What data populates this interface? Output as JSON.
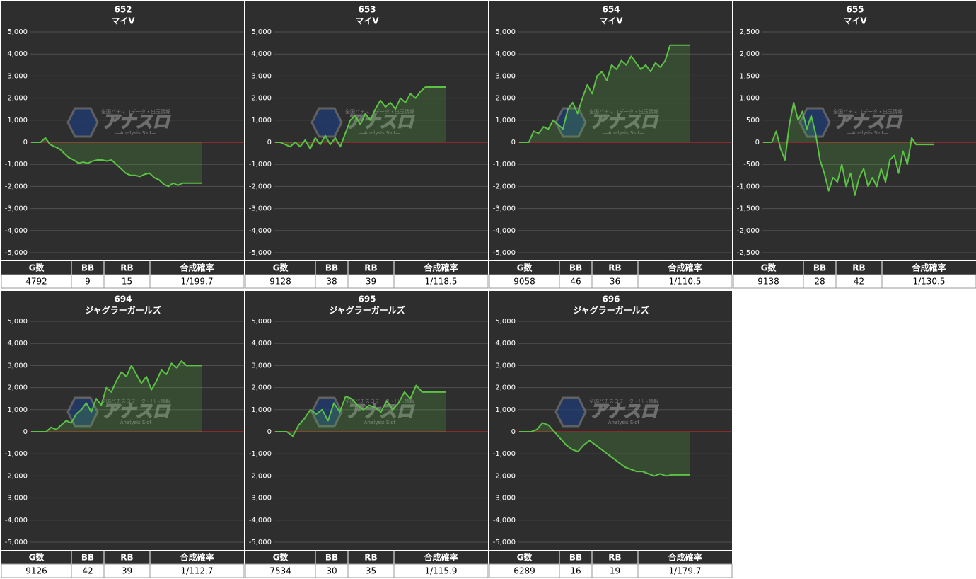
{
  "chart_data": [
    {
      "type": "line",
      "title": "652",
      "subtitle": "マイV",
      "color": "#5cc245",
      "grid": true,
      "values": [
        0,
        0,
        0,
        200,
        -100,
        -200,
        -300,
        -500,
        -700,
        -800,
        -950,
        -900,
        -950,
        -850,
        -800,
        -800,
        -850,
        -800,
        -1000,
        -1200,
        -1400,
        -1500,
        -1500,
        -1550,
        -1450,
        -1400,
        -1600,
        -1700,
        -1900,
        -2000,
        -1850,
        -1950,
        -1850,
        -1850,
        -1850,
        -1850,
        -1850
      ],
      "ylim": [
        -5000,
        5000
      ],
      "yticks": [
        {
          "value": -5000,
          "label": "-5,000"
        },
        {
          "value": -4000,
          "label": "-4,000"
        },
        {
          "value": -3000,
          "label": "-3,000"
        },
        {
          "value": -2000,
          "label": "-2,000"
        },
        {
          "value": -1000,
          "label": "-1,000"
        },
        0,
        {
          "value": 1000,
          "label": "1,000"
        },
        {
          "value": 2000,
          "label": "2,000"
        },
        {
          "value": 3000,
          "label": "3,000"
        },
        {
          "value": 4000,
          "label": "4,000"
        },
        {
          "value": 5000,
          "label": "5,000"
        }
      ],
      "table": {
        "columns": [
          "G数",
          "BB",
          "RB",
          "合成確率"
        ],
        "row": [
          4792,
          9,
          15,
          "1/199.7"
        ]
      }
    },
    {
      "type": "line",
      "title": "653",
      "subtitle": "マイV",
      "color": "#5cc245",
      "grid": true,
      "values": [
        0,
        0,
        -100,
        -200,
        0,
        -200,
        100,
        -300,
        200,
        -100,
        300,
        -100,
        200,
        -200,
        400,
        1000,
        1200,
        800,
        1300,
        1000,
        1500,
        1900,
        1600,
        1800,
        1500,
        2000,
        1800,
        2200,
        2000,
        2300,
        2500,
        2500,
        2500,
        2500,
        2500
      ],
      "ylim": [
        -5000,
        5000
      ],
      "yticks": [
        {
          "value": -5000,
          "label": "-5,000"
        },
        {
          "value": -4000,
          "label": "-4,000"
        },
        {
          "value": -3000,
          "label": "-3,000"
        },
        {
          "value": -2000,
          "label": "-2,000"
        },
        {
          "value": -1000,
          "label": "-1,000"
        },
        0,
        {
          "value": 1000,
          "label": "1,000"
        },
        {
          "value": 2000,
          "label": "2,000"
        },
        {
          "value": 3000,
          "label": "3,000"
        },
        {
          "value": 4000,
          "label": "4,000"
        },
        {
          "value": 5000,
          "label": "5,000"
        }
      ],
      "table": {
        "columns": [
          "G数",
          "BB",
          "RB",
          "合成確率"
        ],
        "row": [
          9128,
          38,
          39,
          "1/118.5"
        ]
      }
    },
    {
      "type": "line",
      "title": "654",
      "subtitle": "マイV",
      "color": "#5cc245",
      "grid": true,
      "values": [
        0,
        0,
        0,
        500,
        400,
        700,
        600,
        1000,
        800,
        600,
        1500,
        1800,
        1300,
        2000,
        2600,
        2200,
        3000,
        3200,
        2800,
        3500,
        3300,
        3700,
        3500,
        3900,
        3600,
        3300,
        3500,
        3200,
        3600,
        3400,
        3700,
        4400,
        4400,
        4400,
        4400,
        4400
      ],
      "ylim": [
        -5000,
        5000
      ],
      "yticks": [
        {
          "value": -5000,
          "label": "-5,000"
        },
        {
          "value": -4000,
          "label": "-4,000"
        },
        {
          "value": -3000,
          "label": "-3,000"
        },
        {
          "value": -2000,
          "label": "-2,000"
        },
        {
          "value": -1000,
          "label": "-1,000"
        },
        0,
        {
          "value": 1000,
          "label": "1,000"
        },
        {
          "value": 2000,
          "label": "2,000"
        },
        {
          "value": 3000,
          "label": "3,000"
        },
        {
          "value": 4000,
          "label": "4,000"
        },
        {
          "value": 5000,
          "label": "5,000"
        }
      ],
      "table": {
        "columns": [
          "G数",
          "BB",
          "RB",
          "合成確率"
        ],
        "row": [
          9058,
          46,
          36,
          "1/110.5"
        ]
      }
    },
    {
      "type": "line",
      "title": "655",
      "subtitle": "マイV",
      "color": "#5cc245",
      "grid": true,
      "values": [
        0,
        0,
        0,
        250,
        -150,
        -400,
        400,
        900,
        500,
        700,
        300,
        600,
        200,
        -400,
        -700,
        -1100,
        -800,
        -900,
        -500,
        -1000,
        -700,
        -1200,
        -800,
        -600,
        -1000,
        -800,
        -1000,
        -600,
        -900,
        -400,
        -300,
        -700,
        -200,
        -500,
        100,
        -50,
        -50,
        -50,
        -50,
        -50
      ],
      "ylim": [
        -2500,
        2500
      ],
      "yticks": [
        {
          "value": -2500,
          "label": "-2,500"
        },
        {
          "value": -2000,
          "label": "-2,000"
        },
        {
          "value": -1500,
          "label": "-1,500"
        },
        {
          "value": -1000,
          "label": "-1,000"
        },
        -500,
        0,
        500,
        {
          "value": 1000,
          "label": "1,000"
        },
        {
          "value": 1500,
          "label": "1,500"
        },
        {
          "value": 2000,
          "label": "2,000"
        },
        {
          "value": 2500,
          "label": "2,500"
        }
      ],
      "table": {
        "columns": [
          "G数",
          "BB",
          "RB",
          "合成確率"
        ],
        "row": [
          9138,
          28,
          42,
          "1/130.5"
        ]
      }
    },
    {
      "type": "line",
      "title": "694",
      "subtitle": "ジャグラーガールズ",
      "color": "#5cc245",
      "grid": true,
      "values": [
        0,
        0,
        0,
        0,
        200,
        100,
        300,
        500,
        400,
        800,
        1000,
        1300,
        900,
        1500,
        1200,
        2000,
        1800,
        2300,
        2700,
        2500,
        3000,
        2600,
        2200,
        2500,
        1900,
        2300,
        2800,
        2600,
        3100,
        2900,
        3200,
        3000,
        3000,
        3000,
        3000
      ],
      "ylim": [
        -5000,
        5000
      ],
      "yticks": [
        {
          "value": -5000,
          "label": "-5,000"
        },
        {
          "value": -4000,
          "label": "-4,000"
        },
        {
          "value": -3000,
          "label": "-3,000"
        },
        {
          "value": -2000,
          "label": "-2,000"
        },
        {
          "value": -1000,
          "label": "-1,000"
        },
        0,
        {
          "value": 1000,
          "label": "1,000"
        },
        {
          "value": 2000,
          "label": "2,000"
        },
        {
          "value": 3000,
          "label": "3,000"
        },
        {
          "value": 4000,
          "label": "4,000"
        },
        {
          "value": 5000,
          "label": "5,000"
        }
      ],
      "table": {
        "columns": [
          "G数",
          "BB",
          "RB",
          "合成確率"
        ],
        "row": [
          9126,
          42,
          39,
          "1/112.7"
        ]
      }
    },
    {
      "type": "line",
      "title": "695",
      "subtitle": "ジャグラーガールズ",
      "color": "#5cc245",
      "grid": true,
      "values": [
        0,
        0,
        0,
        -200,
        300,
        600,
        1000,
        800,
        1000,
        500,
        1300,
        900,
        1600,
        1500,
        1200,
        1000,
        1200,
        1100,
        900,
        1400,
        1000,
        1300,
        1800,
        1500,
        2100,
        1800,
        1800,
        1800,
        1800,
        1800
      ],
      "ylim": [
        -5000,
        5000
      ],
      "yticks": [
        {
          "value": -5000,
          "label": "-5,000"
        },
        {
          "value": -4000,
          "label": "-4,000"
        },
        {
          "value": -3000,
          "label": "-3,000"
        },
        {
          "value": -2000,
          "label": "-2,000"
        },
        {
          "value": -1000,
          "label": "-1,000"
        },
        0,
        {
          "value": 1000,
          "label": "1,000"
        },
        {
          "value": 2000,
          "label": "2,000"
        },
        {
          "value": 3000,
          "label": "3,000"
        },
        {
          "value": 4000,
          "label": "4,000"
        },
        {
          "value": 5000,
          "label": "5,000"
        }
      ],
      "table": {
        "columns": [
          "G数",
          "BB",
          "RB",
          "合成確率"
        ],
        "row": [
          7534,
          30,
          35,
          "1/115.9"
        ]
      }
    },
    {
      "type": "line",
      "title": "696",
      "subtitle": "ジャグラーガールズ",
      "color": "#5cc245",
      "grid": true,
      "values": [
        0,
        0,
        0,
        100,
        400,
        300,
        0,
        -300,
        -600,
        -800,
        -900,
        -600,
        -400,
        -600,
        -800,
        -1000,
        -1200,
        -1400,
        -1600,
        -1700,
        -1800,
        -1800,
        -1900,
        -2000,
        -1900,
        -2000,
        -1950,
        -1950,
        -1950,
        -1950
      ],
      "ylim": [
        -5000,
        5000
      ],
      "yticks": [
        {
          "value": -5000,
          "label": "-5,000"
        },
        {
          "value": -4000,
          "label": "-4,000"
        },
        {
          "value": -3000,
          "label": "-3,000"
        },
        {
          "value": -2000,
          "label": "-2,000"
        },
        {
          "value": -1000,
          "label": "-1,000"
        },
        0,
        {
          "value": 1000,
          "label": "1,000"
        },
        {
          "value": 2000,
          "label": "2,000"
        },
        {
          "value": 3000,
          "label": "3,000"
        },
        {
          "value": 4000,
          "label": "4,000"
        },
        {
          "value": 5000,
          "label": "5,000"
        }
      ],
      "table": {
        "columns": [
          "G数",
          "BB",
          "RB",
          "合成確率"
        ],
        "row": [
          6289,
          16,
          19,
          "1/179.7"
        ]
      }
    }
  ],
  "watermark": {
    "tagline": "全国パチスロデータ・出玉情報",
    "logo": "アナスロ",
    "subtitle": "—Analysis Slot—"
  }
}
